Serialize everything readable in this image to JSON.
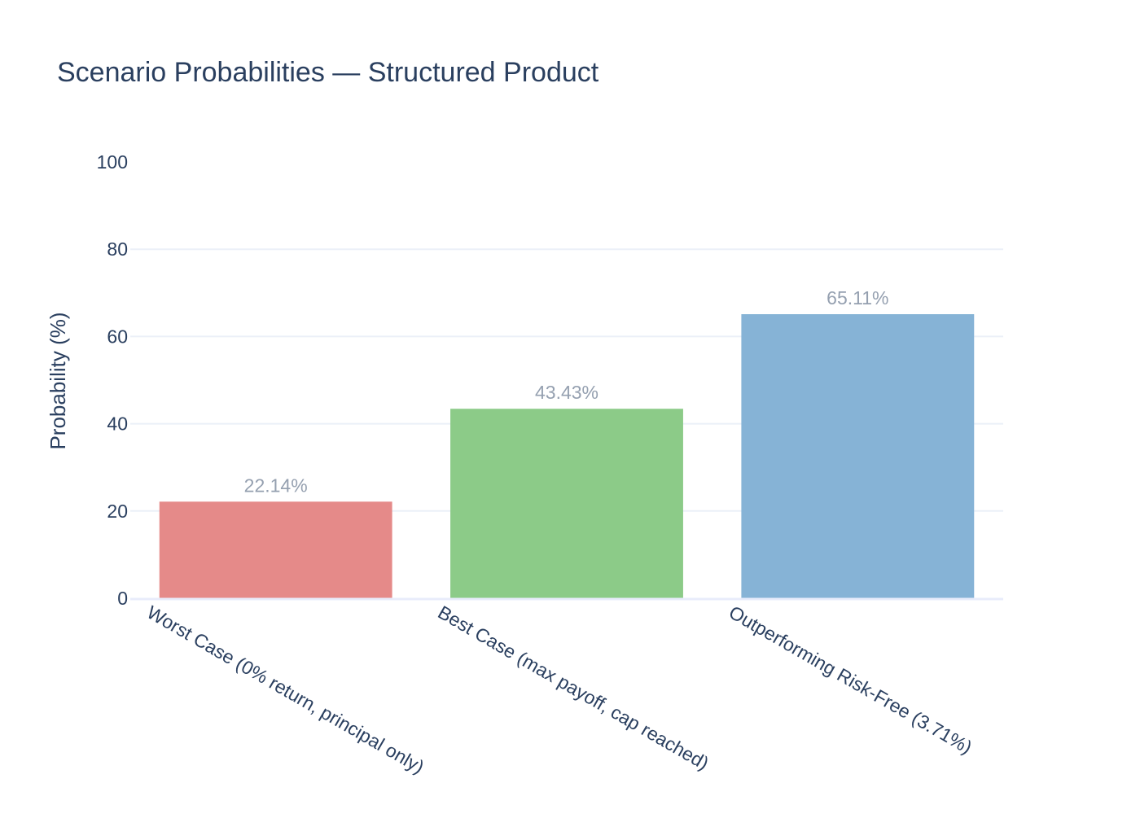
{
  "chart_data": {
    "type": "bar",
    "title": "Scenario Probabilities — Structured Product",
    "xlabel": "",
    "ylabel": "Probability (%)",
    "ylim": [
      0,
      100
    ],
    "yticks": [
      0,
      20,
      40,
      60,
      80,
      100
    ],
    "grid": true,
    "categories": [
      "Worst Case (0% return, principal only)",
      "Best Case (max payoff, cap reached)",
      "Outperforming Risk-Free (3.71%)"
    ],
    "values": [
      22.14,
      43.43,
      65.11
    ],
    "data_labels": [
      "22.14%",
      "43.43%",
      "65.11%"
    ],
    "colors": [
      "#e58a89",
      "#8ccb88",
      "#86b3d6"
    ]
  }
}
